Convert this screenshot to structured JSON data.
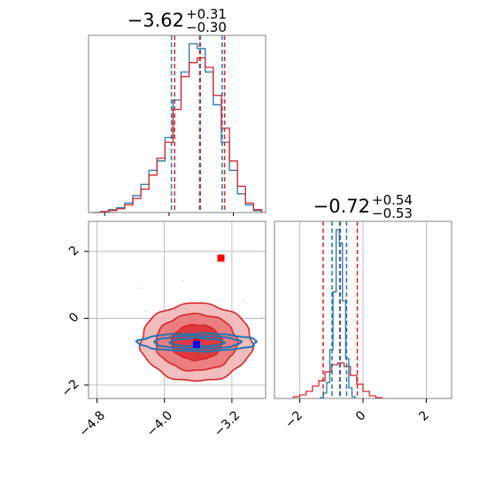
{
  "colors": {
    "blue": "#1f77b4",
    "red": "#d62728",
    "grid": "#b0b0b0",
    "frame": "#808080"
  },
  "chart_data": [
    {
      "type": "histogram",
      "panel": "top-left",
      "param_index": 0,
      "title": {
        "main": "−3.62",
        "sup": "+0.31",
        "sub": "−0.30"
      },
      "x_range": [
        -5.0,
        -2.8
      ],
      "grid": true,
      "series": [
        {
          "color": "blue",
          "quantiles": [
            -3.97,
            -3.61,
            -3.34
          ],
          "bins": [
            -4.9,
            -4.8,
            -4.7,
            -4.6,
            -4.5,
            -4.4,
            -4.3,
            -4.2,
            -4.1,
            -4.0,
            -3.9,
            -3.8,
            -3.7,
            -3.6,
            -3.5,
            -3.4,
            -3.3,
            -3.2,
            -3.1,
            -3.0,
            -2.9
          ],
          "counts": [
            0,
            1,
            3,
            5,
            10,
            18,
            30,
            45,
            55,
            80,
            120,
            150,
            180,
            175,
            150,
            115,
            75,
            45,
            20,
            8,
            2
          ]
        },
        {
          "color": "red",
          "quantiles": [
            -3.93,
            -3.62,
            -3.31
          ],
          "bins": [
            -4.9,
            -4.8,
            -4.7,
            -4.6,
            -4.5,
            -4.4,
            -4.3,
            -4.2,
            -4.1,
            -4.0,
            -3.9,
            -3.8,
            -3.7,
            -3.6,
            -3.5,
            -3.4,
            -3.3,
            -3.2,
            -3.1,
            -3.0,
            -2.9
          ],
          "counts": [
            0,
            1,
            2,
            4,
            8,
            15,
            25,
            40,
            58,
            75,
            110,
            145,
            160,
            165,
            155,
            125,
            90,
            55,
            28,
            10,
            3
          ]
        }
      ]
    },
    {
      "type": "contour",
      "panel": "bottom-left",
      "x_range": [
        -4.9,
        -2.8
      ],
      "y_range": [
        -2.4,
        2.9
      ],
      "x_ticks": [
        -4.8,
        -4.0,
        -3.2
      ],
      "x_tick_labels": [
        "−4.8",
        "−4.0",
        "−3.2"
      ],
      "y_ticks": [
        -2,
        0,
        2
      ],
      "y_tick_labels": [
        "−2",
        "0",
        "2"
      ],
      "grid": true,
      "series": [
        {
          "color": "red",
          "center": [
            -3.62,
            -0.72
          ],
          "sigma": [
            0.3,
            0.53
          ],
          "levels": [
            1.0,
            1.6,
            2.2
          ]
        },
        {
          "color": "blue",
          "center": [
            -3.61,
            -0.72
          ],
          "sigma": [
            0.32,
            0.12
          ],
          "levels": [
            1.0,
            1.6,
            2.2
          ]
        }
      ],
      "markers": [
        {
          "color": "red",
          "x": -3.33,
          "y": 1.8
        },
        {
          "color": "red",
          "x": -3.62,
          "y": -0.72
        },
        {
          "color": "blue",
          "x": -3.62,
          "y": -0.78
        }
      ]
    },
    {
      "type": "histogram",
      "panel": "bottom-right",
      "param_index": 1,
      "title": {
        "main": "−0.72",
        "sup": "+0.54",
        "sub": "−0.53"
      },
      "x_range": [
        -2.8,
        2.8
      ],
      "x_ticks": [
        -2,
        0,
        2
      ],
      "x_tick_labels": [
        "−2",
        "0",
        "2"
      ],
      "grid": true,
      "series": [
        {
          "color": "red",
          "quantiles": [
            -1.26,
            -0.72,
            -0.18
          ],
          "bins": [
            -2.1,
            -1.9,
            -1.7,
            -1.5,
            -1.3,
            -1.1,
            -0.9,
            -0.7,
            -0.5,
            -0.3,
            -0.1,
            0.1,
            0.3,
            0.5
          ],
          "counts": [
            2,
            4,
            8,
            14,
            20,
            30,
            38,
            40,
            36,
            26,
            16,
            8,
            3,
            1
          ]
        },
        {
          "color": "blue",
          "quantiles": [
            -0.98,
            -0.74,
            -0.52
          ],
          "bins": [
            -1.3,
            -1.2,
            -1.1,
            -1.0,
            -0.9,
            -0.8,
            -0.7,
            -0.6,
            -0.5,
            -0.4,
            -0.3
          ],
          "counts": [
            1,
            6,
            18,
            55,
            120,
            190,
            175,
            110,
            45,
            12,
            2
          ]
        }
      ]
    }
  ]
}
